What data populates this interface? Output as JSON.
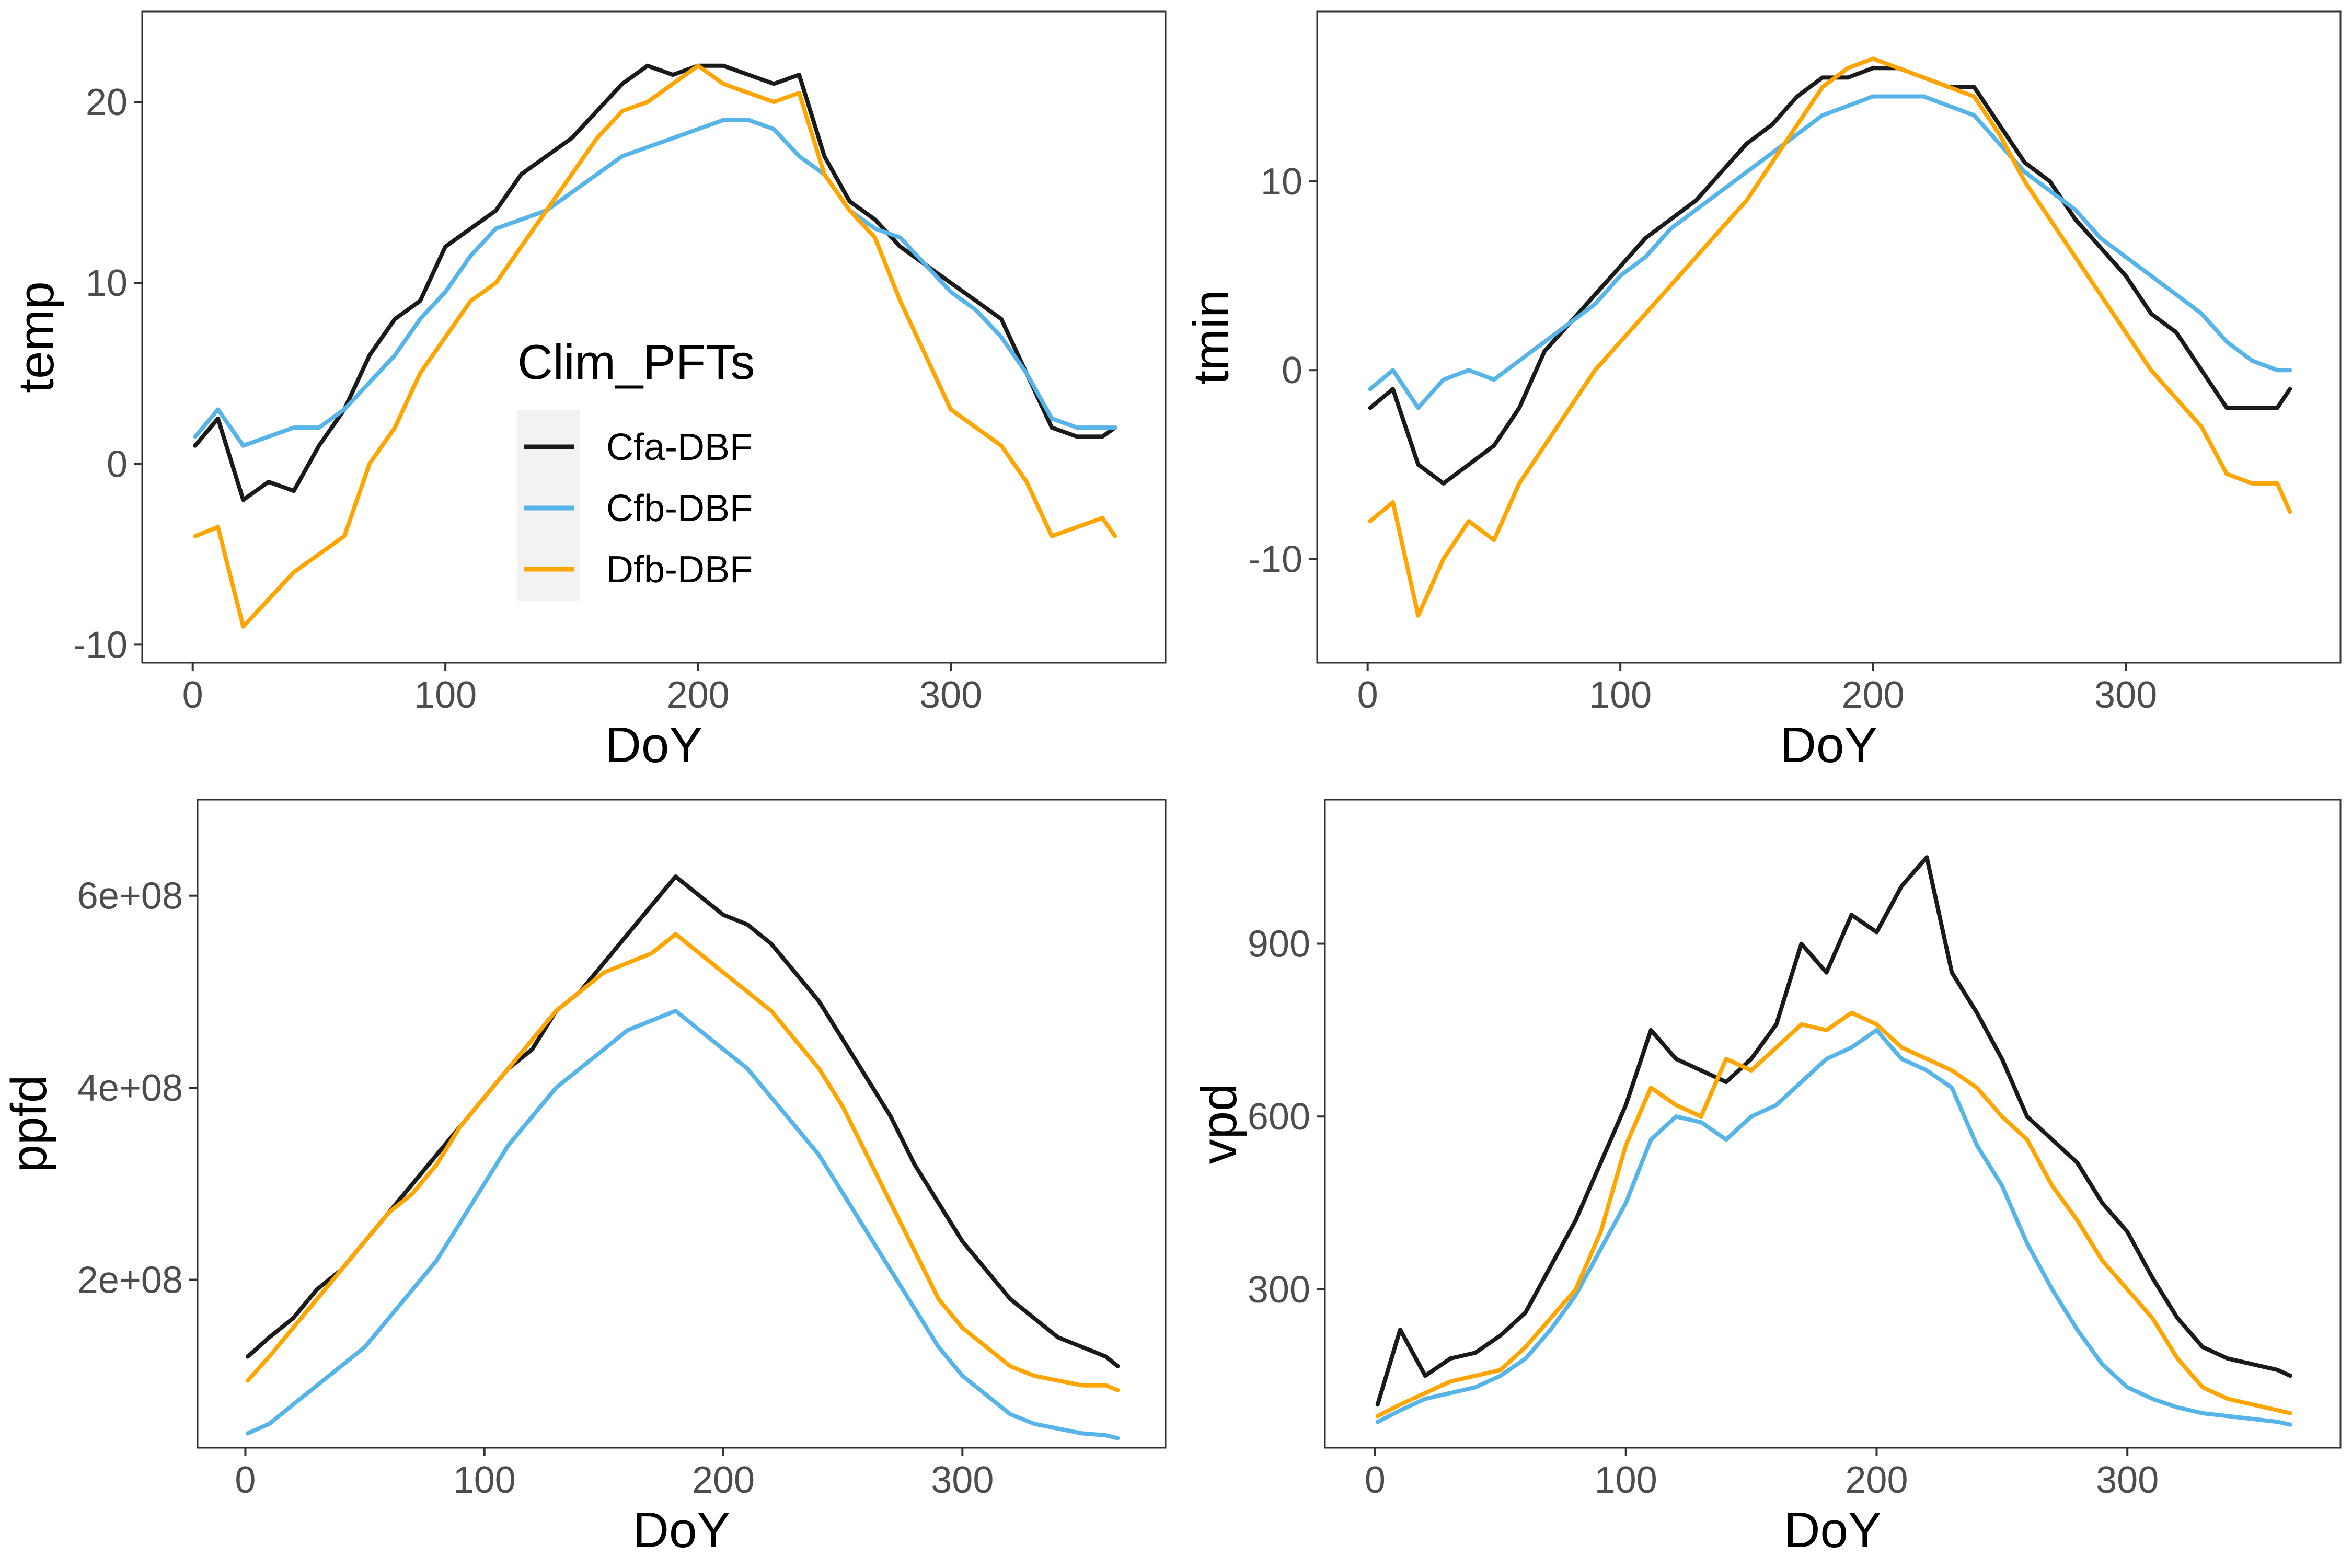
{
  "legend": {
    "title": "Clim_PFTs",
    "entries": [
      {
        "name": "Cfa-DBF",
        "color": "#1a1a1a"
      },
      {
        "name": "Cfb-DBF",
        "color": "#56b4e9"
      },
      {
        "name": "Dfb-DBF",
        "color": "#ffa500"
      }
    ]
  },
  "chart_data": [
    {
      "type": "line",
      "xlabel": "DoY",
      "ylabel": "temp",
      "xlim": [
        -20,
        385
      ],
      "ylim": [
        -11,
        25
      ],
      "xticks": [
        0,
        100,
        200,
        300
      ],
      "yticks": [
        -10,
        0,
        10,
        20
      ],
      "ytick_labels": [
        "-10",
        "0",
        "10",
        "20"
      ],
      "grid": false,
      "legend": "inside-left",
      "series": [
        {
          "name": "Cfa-DBF",
          "color": "#1a1a1a",
          "x": [
            1,
            10,
            20,
            30,
            40,
            50,
            60,
            70,
            80,
            90,
            100,
            110,
            120,
            130,
            140,
            150,
            160,
            170,
            180,
            190,
            200,
            210,
            220,
            230,
            240,
            250,
            260,
            270,
            280,
            290,
            300,
            310,
            320,
            330,
            340,
            350,
            360,
            365
          ],
          "y": [
            1,
            2.5,
            -2,
            -1,
            -1.5,
            1,
            3,
            6,
            8,
            9,
            12,
            13,
            14,
            16,
            17,
            18,
            19.5,
            21,
            22,
            21.5,
            22,
            22,
            21.5,
            21,
            21.5,
            17,
            14.5,
            13.5,
            12,
            11,
            10,
            9,
            8,
            5,
            2,
            1.5,
            1.5,
            2
          ]
        },
        {
          "name": "Cfb-DBF",
          "color": "#56b4e9",
          "x": [
            1,
            10,
            20,
            30,
            40,
            50,
            60,
            70,
            80,
            90,
            100,
            110,
            120,
            130,
            140,
            150,
            160,
            170,
            180,
            190,
            200,
            210,
            220,
            230,
            240,
            250,
            260,
            270,
            280,
            290,
            300,
            310,
            320,
            330,
            340,
            350,
            360,
            365
          ],
          "y": [
            1.5,
            3,
            1,
            1.5,
            2,
            2,
            3,
            4.5,
            6,
            8,
            9.5,
            11.5,
            13,
            13.5,
            14,
            15,
            16,
            17,
            17.5,
            18,
            18.5,
            19,
            19,
            18.5,
            17,
            16,
            14,
            13,
            12.5,
            11,
            9.5,
            8.5,
            7,
            5,
            2.5,
            2,
            2,
            2
          ]
        },
        {
          "name": "Dfb-DBF",
          "color": "#ffa500",
          "x": [
            1,
            10,
            20,
            30,
            40,
            50,
            60,
            70,
            80,
            90,
            100,
            110,
            120,
            130,
            140,
            150,
            160,
            170,
            180,
            190,
            200,
            210,
            220,
            230,
            240,
            250,
            260,
            270,
            280,
            290,
            300,
            310,
            320,
            330,
            340,
            350,
            360,
            365
          ],
          "y": [
            -4,
            -3.5,
            -9,
            -7.5,
            -6,
            -5,
            -4,
            0,
            2,
            5,
            7,
            9,
            10,
            12,
            14,
            16,
            18,
            19.5,
            20,
            21,
            22,
            21,
            20.5,
            20,
            20.5,
            16,
            14,
            12.5,
            9,
            6,
            3,
            2,
            1,
            -1,
            -4,
            -3.5,
            -3,
            -4
          ]
        }
      ]
    },
    {
      "type": "line",
      "xlabel": "DoY",
      "ylabel": "tmin",
      "xlim": [
        -20,
        385
      ],
      "ylim": [
        -15.5,
        19
      ],
      "xticks": [
        0,
        100,
        200,
        300
      ],
      "yticks": [
        -10,
        0,
        10
      ],
      "ytick_labels": [
        "-10",
        "0",
        "10"
      ],
      "grid": false,
      "series": [
        {
          "name": "Cfa-DBF",
          "color": "#1a1a1a",
          "x": [
            1,
            10,
            20,
            30,
            40,
            50,
            60,
            70,
            80,
            90,
            100,
            110,
            120,
            130,
            140,
            150,
            160,
            170,
            180,
            190,
            200,
            210,
            220,
            230,
            240,
            250,
            260,
            270,
            280,
            290,
            300,
            310,
            320,
            330,
            340,
            350,
            360,
            365
          ],
          "y": [
            -2,
            -1,
            -5,
            -6,
            -5,
            -4,
            -2,
            1,
            2.5,
            4,
            5.5,
            7,
            8,
            9,
            10.5,
            12,
            13,
            14.5,
            15.5,
            15.5,
            16,
            16,
            15.5,
            15,
            15,
            13,
            11,
            10,
            8,
            6.5,
            5,
            3,
            2,
            0,
            -2,
            -2,
            -2,
            -1
          ]
        },
        {
          "name": "Cfb-DBF",
          "color": "#56b4e9",
          "x": [
            1,
            10,
            20,
            30,
            40,
            50,
            60,
            70,
            80,
            90,
            100,
            110,
            120,
            130,
            140,
            150,
            160,
            170,
            180,
            190,
            200,
            210,
            220,
            230,
            240,
            250,
            260,
            270,
            280,
            290,
            300,
            310,
            320,
            330,
            340,
            350,
            360,
            365
          ],
          "y": [
            -1,
            0,
            -2,
            -0.5,
            0,
            -0.5,
            0.5,
            1.5,
            2.5,
            3.5,
            5,
            6,
            7.5,
            8.5,
            9.5,
            10.5,
            11.5,
            12.5,
            13.5,
            14,
            14.5,
            14.5,
            14.5,
            14,
            13.5,
            12,
            10.5,
            9.5,
            8.5,
            7,
            6,
            5,
            4,
            3,
            1.5,
            0.5,
            0,
            0
          ]
        },
        {
          "name": "Dfb-DBF",
          "color": "#ffa500",
          "x": [
            1,
            10,
            20,
            30,
            40,
            50,
            60,
            70,
            80,
            90,
            100,
            110,
            120,
            130,
            140,
            150,
            160,
            170,
            180,
            190,
            200,
            210,
            220,
            230,
            240,
            250,
            260,
            270,
            280,
            290,
            300,
            310,
            320,
            330,
            340,
            350,
            360,
            365
          ],
          "y": [
            -8,
            -7,
            -13,
            -10,
            -8,
            -9,
            -6,
            -4,
            -2,
            0,
            1.5,
            3,
            4.5,
            6,
            7.5,
            9,
            11,
            13,
            15,
            16,
            16.5,
            16,
            15.5,
            15,
            14.5,
            12.5,
            10,
            8,
            6,
            4,
            2,
            0,
            -1.5,
            -3,
            -5.5,
            -6,
            -6,
            -7.5
          ]
        }
      ]
    },
    {
      "type": "line",
      "xlabel": "DoY",
      "ylabel": "ppfd",
      "xlim": [
        -20,
        385
      ],
      "ylim": [
        25000000,
        700000000
      ],
      "xticks": [
        0,
        100,
        200,
        300
      ],
      "yticks": [
        200000000,
        400000000,
        600000000
      ],
      "ytick_labels": [
        "2e+08",
        "4e+08",
        "6e+08"
      ],
      "grid": false,
      "series": [
        {
          "name": "Cfa-DBF",
          "color": "#1a1a1a",
          "x": [
            1,
            10,
            20,
            30,
            40,
            50,
            60,
            70,
            80,
            90,
            100,
            110,
            120,
            130,
            140,
            150,
            160,
            170,
            180,
            190,
            200,
            210,
            220,
            230,
            240,
            250,
            260,
            270,
            280,
            290,
            300,
            310,
            320,
            330,
            340,
            350,
            360,
            365
          ],
          "y": [
            120000000,
            140000000,
            160000000,
            190000000,
            210000000,
            240000000,
            270000000,
            300000000,
            330000000,
            360000000,
            390000000,
            420000000,
            440000000,
            480000000,
            500000000,
            530000000,
            560000000,
            590000000,
            620000000,
            600000000,
            580000000,
            570000000,
            550000000,
            520000000,
            490000000,
            450000000,
            410000000,
            370000000,
            320000000,
            280000000,
            240000000,
            210000000,
            180000000,
            160000000,
            140000000,
            130000000,
            120000000,
            110000000
          ]
        },
        {
          "name": "Cfb-DBF",
          "color": "#56b4e9",
          "x": [
            1,
            10,
            20,
            30,
            40,
            50,
            60,
            70,
            80,
            90,
            100,
            110,
            120,
            130,
            140,
            150,
            160,
            170,
            180,
            190,
            200,
            210,
            220,
            230,
            240,
            250,
            260,
            270,
            280,
            290,
            300,
            310,
            320,
            330,
            340,
            350,
            360,
            365
          ],
          "y": [
            40000000,
            50000000,
            70000000,
            90000000,
            110000000,
            130000000,
            160000000,
            190000000,
            220000000,
            260000000,
            300000000,
            340000000,
            370000000,
            400000000,
            420000000,
            440000000,
            460000000,
            470000000,
            480000000,
            460000000,
            440000000,
            420000000,
            390000000,
            360000000,
            330000000,
            290000000,
            250000000,
            210000000,
            170000000,
            130000000,
            100000000,
            80000000,
            60000000,
            50000000,
            45000000,
            40000000,
            38000000,
            35000000
          ]
        },
        {
          "name": "Dfb-DBF",
          "color": "#ffa500",
          "x": [
            1,
            10,
            20,
            30,
            40,
            50,
            60,
            70,
            80,
            90,
            100,
            110,
            120,
            130,
            140,
            150,
            160,
            170,
            180,
            190,
            200,
            210,
            220,
            230,
            240,
            250,
            260,
            270,
            280,
            290,
            300,
            310,
            320,
            330,
            340,
            350,
            360,
            365
          ],
          "y": [
            95000000,
            120000000,
            150000000,
            180000000,
            210000000,
            240000000,
            270000000,
            290000000,
            320000000,
            360000000,
            390000000,
            420000000,
            450000000,
            480000000,
            500000000,
            520000000,
            530000000,
            540000000,
            560000000,
            540000000,
            520000000,
            500000000,
            480000000,
            450000000,
            420000000,
            380000000,
            330000000,
            280000000,
            230000000,
            180000000,
            150000000,
            130000000,
            110000000,
            100000000,
            95000000,
            90000000,
            90000000,
            85000000
          ]
        }
      ]
    },
    {
      "type": "line",
      "xlabel": "DoY",
      "ylabel": "vpd",
      "xlim": [
        -20,
        385
      ],
      "ylim": [
        25,
        1150
      ],
      "xticks": [
        0,
        100,
        200,
        300
      ],
      "yticks": [
        300,
        600,
        900
      ],
      "ytick_labels": [
        "300",
        "600",
        "900"
      ],
      "grid": false,
      "series": [
        {
          "name": "Cfa-DBF",
          "color": "#1a1a1a",
          "x": [
            1,
            10,
            20,
            30,
            40,
            50,
            60,
            70,
            80,
            90,
            100,
            110,
            120,
            130,
            140,
            150,
            160,
            170,
            180,
            190,
            200,
            210,
            220,
            230,
            240,
            250,
            260,
            270,
            280,
            290,
            300,
            310,
            320,
            330,
            340,
            350,
            360,
            365
          ],
          "y": [
            100,
            230,
            150,
            180,
            190,
            220,
            260,
            340,
            420,
            520,
            620,
            750,
            700,
            680,
            660,
            700,
            760,
            900,
            850,
            950,
            920,
            1000,
            1050,
            850,
            780,
            700,
            600,
            560,
            520,
            450,
            400,
            320,
            250,
            200,
            180,
            170,
            160,
            150
          ]
        },
        {
          "name": "Cfb-DBF",
          "color": "#56b4e9",
          "x": [
            1,
            10,
            20,
            30,
            40,
            50,
            60,
            70,
            80,
            90,
            100,
            110,
            120,
            130,
            140,
            150,
            160,
            170,
            180,
            190,
            200,
            210,
            220,
            230,
            240,
            250,
            260,
            270,
            280,
            290,
            300,
            310,
            320,
            330,
            340,
            350,
            360,
            365
          ],
          "y": [
            70,
            90,
            110,
            120,
            130,
            150,
            180,
            230,
            290,
            370,
            450,
            560,
            600,
            590,
            560,
            600,
            620,
            660,
            700,
            720,
            750,
            700,
            680,
            650,
            550,
            480,
            380,
            300,
            230,
            170,
            130,
            110,
            95,
            85,
            80,
            75,
            70,
            65
          ]
        },
        {
          "name": "Dfb-DBF",
          "color": "#ffa500",
          "x": [
            1,
            10,
            20,
            30,
            40,
            50,
            60,
            70,
            80,
            90,
            100,
            110,
            120,
            130,
            140,
            150,
            160,
            170,
            180,
            190,
            200,
            210,
            220,
            230,
            240,
            250,
            260,
            270,
            280,
            290,
            300,
            310,
            320,
            330,
            340,
            350,
            360,
            365
          ],
          "y": [
            80,
            100,
            120,
            140,
            150,
            160,
            200,
            250,
            300,
            400,
            550,
            650,
            620,
            600,
            700,
            680,
            720,
            760,
            750,
            780,
            760,
            720,
            700,
            680,
            650,
            600,
            560,
            480,
            420,
            350,
            300,
            250,
            180,
            130,
            110,
            100,
            90,
            85
          ]
        }
      ]
    }
  ]
}
